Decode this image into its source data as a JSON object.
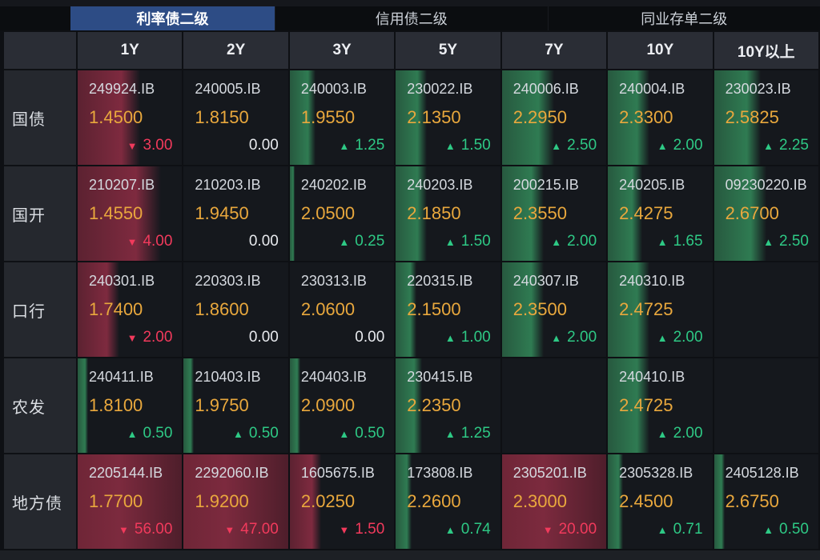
{
  "tabs": [
    {
      "label": "利率债二级",
      "active": true
    },
    {
      "label": "信用债二级",
      "active": false
    },
    {
      "label": "同业存单二级",
      "active": false
    }
  ],
  "columns": [
    "",
    "1Y",
    "2Y",
    "3Y",
    "5Y",
    "7Y",
    "10Y",
    "10Y以上"
  ],
  "icons": {
    "up_arrow": "▲",
    "down_arrow": "▼"
  },
  "rows": [
    {
      "label": "国债",
      "cells": [
        {
          "code": "249924.IB",
          "yield": "1.4500",
          "change": "3.00",
          "direction": "down"
        },
        {
          "code": "240005.IB",
          "yield": "1.8150",
          "change": "0.00",
          "direction": "flat"
        },
        {
          "code": "240003.IB",
          "yield": "1.9550",
          "change": "1.25",
          "direction": "up"
        },
        {
          "code": "230022.IB",
          "yield": "2.1350",
          "change": "1.50",
          "direction": "up"
        },
        {
          "code": "240006.IB",
          "yield": "2.2950",
          "change": "2.50",
          "direction": "up"
        },
        {
          "code": "240004.IB",
          "yield": "2.3300",
          "change": "2.00",
          "direction": "up"
        },
        {
          "code": "230023.IB",
          "yield": "2.5825",
          "change": "2.25",
          "direction": "up"
        }
      ]
    },
    {
      "label": "国开",
      "cells": [
        {
          "code": "210207.IB",
          "yield": "1.4550",
          "change": "4.00",
          "direction": "down"
        },
        {
          "code": "210203.IB",
          "yield": "1.9450",
          "change": "0.00",
          "direction": "flat"
        },
        {
          "code": "240202.IB",
          "yield": "2.0500",
          "change": "0.25",
          "direction": "up"
        },
        {
          "code": "240203.IB",
          "yield": "2.1850",
          "change": "1.50",
          "direction": "up"
        },
        {
          "code": "200215.IB",
          "yield": "2.3550",
          "change": "2.00",
          "direction": "up"
        },
        {
          "code": "240205.IB",
          "yield": "2.4275",
          "change": "1.65",
          "direction": "up"
        },
        {
          "code": "09230220.IB",
          "yield": "2.6700",
          "change": "2.50",
          "direction": "up"
        }
      ]
    },
    {
      "label": "口行",
      "cells": [
        {
          "code": "240301.IB",
          "yield": "1.7400",
          "change": "2.00",
          "direction": "down"
        },
        {
          "code": "220303.IB",
          "yield": "1.8600",
          "change": "0.00",
          "direction": "flat"
        },
        {
          "code": "230313.IB",
          "yield": "2.0600",
          "change": "0.00",
          "direction": "flat"
        },
        {
          "code": "220315.IB",
          "yield": "2.1500",
          "change": "1.00",
          "direction": "up"
        },
        {
          "code": "240307.IB",
          "yield": "2.3500",
          "change": "2.00",
          "direction": "up"
        },
        {
          "code": "240310.IB",
          "yield": "2.4725",
          "change": "2.00",
          "direction": "up"
        },
        null
      ]
    },
    {
      "label": "农发",
      "cells": [
        {
          "code": "240411.IB",
          "yield": "1.8100",
          "change": "0.50",
          "direction": "up"
        },
        {
          "code": "210403.IB",
          "yield": "1.9750",
          "change": "0.50",
          "direction": "up"
        },
        {
          "code": "240403.IB",
          "yield": "2.0900",
          "change": "0.50",
          "direction": "up"
        },
        {
          "code": "230415.IB",
          "yield": "2.2350",
          "change": "1.25",
          "direction": "up"
        },
        null,
        {
          "code": "240410.IB",
          "yield": "2.4725",
          "change": "2.00",
          "direction": "up"
        },
        null
      ]
    },
    {
      "label": "地方债",
      "cells": [
        {
          "code": "2205144.IB",
          "yield": "1.7700",
          "change": "56.00",
          "direction": "down"
        },
        {
          "code": "2292060.IB",
          "yield": "1.9200",
          "change": "47.00",
          "direction": "down"
        },
        {
          "code": "1605675.IB",
          "yield": "2.0250",
          "change": "1.50",
          "direction": "down"
        },
        {
          "code": "173808.IB",
          "yield": "2.2600",
          "change": "0.74",
          "direction": "up"
        },
        {
          "code": "2305201.IB",
          "yield": "2.3000",
          "change": "20.00",
          "direction": "down"
        },
        {
          "code": "2305328.IB",
          "yield": "2.4500",
          "change": "0.71",
          "direction": "up"
        },
        {
          "code": "2405128.IB",
          "yield": "2.6750",
          "change": "0.50",
          "direction": "up"
        }
      ]
    }
  ],
  "colors": {
    "page_bg": "#0e1014",
    "cell_bg": "#15181d",
    "header_bg": "#2a2d35",
    "label_bg": "#25282e",
    "tab_active_bg": "#2d4c85",
    "up_text": "#2ec985",
    "down_text": "#f23a5c",
    "yield_text": "#e9a83d",
    "code_text": "#d5d9df",
    "flat_text": "#e8eaee"
  }
}
